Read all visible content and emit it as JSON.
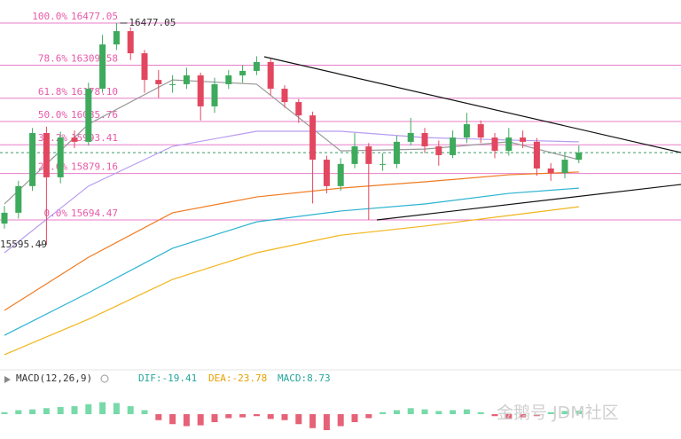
{
  "chart_data": {
    "type": "candlestick",
    "ylim": [
      15105.8,
      16568.7
    ],
    "up_color": "#3daa5c",
    "down_color": "#e2475f",
    "candles": {
      "open": [
        15680,
        15723,
        15829,
        16040,
        15864,
        16022,
        16005,
        16216,
        16392,
        16445,
        16357,
        16251,
        16234,
        16234,
        16269,
        16146,
        16234,
        16269,
        16287,
        16322,
        16216,
        16163,
        16110,
        15934,
        15829,
        15917,
        15987,
        15917,
        15917,
        16005,
        16040,
        15987,
        15952,
        16022,
        16075,
        16022,
        15969,
        16022,
        16005,
        15899,
        15881,
        15934
      ],
      "high": [
        15750,
        15850,
        16060,
        16065,
        16045,
        16050,
        16240,
        16430,
        16477.05,
        16460,
        16370,
        16290,
        16270,
        16300,
        16280,
        16260,
        16290,
        16310,
        16345,
        16335,
        16230,
        16175,
        16125,
        15950,
        15940,
        16040,
        16000,
        15960,
        16030,
        16100,
        16060,
        16010,
        16050,
        16120,
        16090,
        16040,
        16060,
        16050,
        16020,
        15920,
        15960,
        15990
      ],
      "low": [
        15660,
        15700,
        15810,
        15595.49,
        15840,
        15980,
        15990,
        16200,
        16370,
        16330,
        16200,
        16180,
        16200,
        16215,
        16090,
        16120,
        16215,
        16240,
        16270,
        16190,
        16140,
        16080,
        15760,
        15800,
        15810,
        15900,
        15694.47,
        15890,
        15900,
        15990,
        15960,
        15910,
        15940,
        16000,
        16000,
        15940,
        15950,
        15980,
        15870,
        15850,
        15860,
        15920
      ],
      "close": [
        15723,
        15829,
        16040,
        15864,
        16022,
        16005,
        16216,
        16392,
        16445,
        16357,
        16251,
        16234,
        16234,
        16269,
        16146,
        16234,
        16269,
        16287,
        16322,
        16216,
        16163,
        16110,
        15934,
        15829,
        15917,
        15987,
        15917,
        15917,
        16005,
        16040,
        15987,
        15952,
        16022,
        16075,
        16022,
        15969,
        16022,
        16005,
        15899,
        15881,
        15934,
        15962
      ]
    },
    "fib_levels": [
      {
        "ratio": "100.0%",
        "price": 16477.05
      },
      {
        "ratio": "78.6%",
        "price": 16309.58
      },
      {
        "ratio": "61.8%",
        "price": {
          "value": 16178.1,
          "label": "16178.10"
        }
      },
      {
        "ratio": "50.0%",
        "price": 16085.76
      },
      {
        "ratio": "38.2%",
        "price": 15993.41
      },
      {
        "ratio": "23.6%",
        "price": 15879.16
      },
      {
        "ratio": "0.0%",
        "price": 15694.47
      }
    ],
    "fib_color": "#e87ec8",
    "ma_x": [
      0,
      6,
      12,
      18,
      24,
      30,
      36,
      41
    ],
    "moving_averages": [
      {
        "color": "#999999",
        "values": [
          15758,
          16075,
          16251,
          16234,
          15969,
          15976,
          16005,
          15934
        ]
      },
      {
        "color": "#b79cf0",
        "values": [
          15564,
          15829,
          15987,
          16047,
          16047,
          16022,
          16012,
          16005
        ]
      },
      {
        "color": "#f07a1e",
        "values": [
          15335,
          15546,
          15723,
          15786,
          15821,
          15846,
          15874,
          15885
        ]
      },
      {
        "color": "#2bb3d0",
        "values": [
          15236,
          15405,
          15582,
          15687,
          15730,
          15758,
          15800,
          15821
        ]
      },
      {
        "color": "#f2b51c",
        "values": [
          15159,
          15300,
          15458,
          15564,
          15634,
          15670,
          15712,
          15747
        ]
      }
    ],
    "macd": {
      "title": "MACD(12,26,9)",
      "dif": "DIF:-19.41",
      "dea": "DEA:-23.78",
      "macd": "MACD:8.73",
      "ylim": [
        -60,
        60
      ],
      "histogram": [
        5,
        10,
        12,
        15,
        18,
        20,
        25,
        30,
        28,
        20,
        10,
        -15,
        -25,
        -30,
        -28,
        -20,
        -10,
        -8,
        -5,
        -12,
        -15,
        -25,
        -35,
        -40,
        -30,
        -20,
        -10,
        5,
        10,
        15,
        12,
        8,
        10,
        12,
        5,
        -5,
        -10,
        -8,
        -5,
        5,
        8,
        8.73
      ]
    },
    "watermark": "金鹅号 JDM社区"
  }
}
